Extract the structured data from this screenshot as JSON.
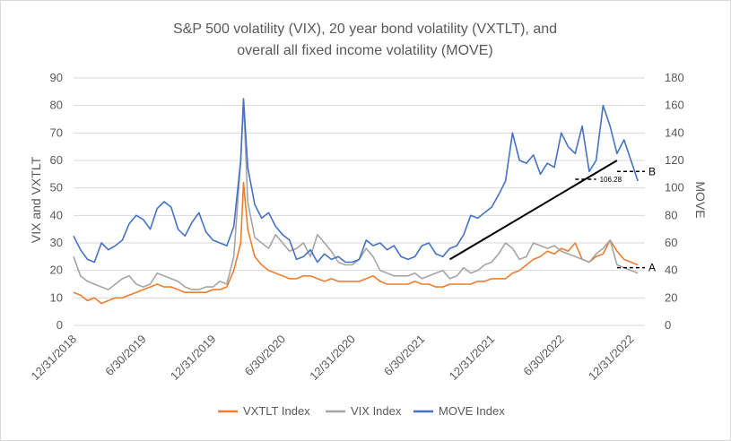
{
  "chart_data": {
    "type": "line",
    "title_line1": "S&P 500 volatility (VIX), 20 year bond volatility (VXTLT), and",
    "title_line2": "overall all fixed income volatility (MOVE)",
    "ylabel_left": "VIX and VXTLT",
    "ylabel_right": "MOVE",
    "ylim_left": [
      0,
      90
    ],
    "ylim_right": [
      0,
      180
    ],
    "yticks_left": [
      "0",
      "10",
      "20",
      "30",
      "40",
      "50",
      "60",
      "70",
      "80",
      "90"
    ],
    "yticks_right": [
      "0",
      "20",
      "40",
      "60",
      "80",
      "100",
      "120",
      "140",
      "160",
      "180"
    ],
    "x_tick_labels": [
      "12/31/2018",
      "6/30/2019",
      "12/31/2019",
      "6/30/2020",
      "12/31/2020",
      "6/30/2021",
      "12/31/2021",
      "6/30/2022",
      "12/31/2022"
    ],
    "x_tick_values": [
      2019.0,
      2019.5,
      2020.0,
      2020.5,
      2021.0,
      2021.5,
      2022.0,
      2022.5,
      2023.0
    ],
    "x_range": [
      2019.0,
      2023.1
    ],
    "grid": "horizontal",
    "legend_position": "bottom",
    "series": [
      {
        "name": "VXTLT Index",
        "axis": "left",
        "color": "#ED7D31",
        "x": [
          2019.0,
          2019.05,
          2019.1,
          2019.15,
          2019.2,
          2019.25,
          2019.3,
          2019.35,
          2019.4,
          2019.45,
          2019.5,
          2019.55,
          2019.6,
          2019.65,
          2019.7,
          2019.75,
          2019.8,
          2019.85,
          2019.9,
          2019.95,
          2020.0,
          2020.05,
          2020.1,
          2020.15,
          2020.2,
          2020.22,
          2020.25,
          2020.3,
          2020.35,
          2020.4,
          2020.45,
          2020.5,
          2020.55,
          2020.6,
          2020.65,
          2020.7,
          2020.75,
          2020.8,
          2020.85,
          2020.9,
          2020.95,
          2021.0,
          2021.05,
          2021.1,
          2021.15,
          2021.2,
          2021.25,
          2021.3,
          2021.35,
          2021.4,
          2021.45,
          2021.5,
          2021.55,
          2021.6,
          2021.65,
          2021.7,
          2021.75,
          2021.8,
          2021.85,
          2021.9,
          2021.95,
          2022.0,
          2022.05,
          2022.1,
          2022.15,
          2022.2,
          2022.25,
          2022.3,
          2022.35,
          2022.4,
          2022.45,
          2022.5,
          2022.55,
          2022.6,
          2022.65,
          2022.7,
          2022.75,
          2022.8,
          2022.85,
          2022.9,
          2022.95,
          2023.0,
          2023.05
        ],
        "values": [
          12,
          11,
          9,
          10,
          8,
          9,
          10,
          10,
          11,
          12,
          13,
          14,
          15,
          14,
          14,
          13,
          12,
          12,
          12,
          12,
          13,
          13,
          14,
          20,
          30,
          52,
          35,
          25,
          22,
          20,
          19,
          18,
          17,
          17,
          18,
          18,
          17,
          16,
          17,
          16,
          16,
          16,
          16,
          17,
          18,
          16,
          15,
          15,
          15,
          15,
          16,
          15,
          15,
          14,
          14,
          15,
          15,
          15,
          15,
          16,
          16,
          17,
          17,
          17,
          19,
          20,
          22,
          24,
          25,
          27,
          26,
          28,
          27,
          30,
          24,
          23,
          25,
          26,
          31,
          27,
          24,
          23,
          22
        ]
      },
      {
        "name": "VIX Index",
        "axis": "left",
        "color": "#A5A5A5",
        "x": [
          2019.0,
          2019.05,
          2019.1,
          2019.15,
          2019.2,
          2019.25,
          2019.3,
          2019.35,
          2019.4,
          2019.45,
          2019.5,
          2019.55,
          2019.6,
          2019.65,
          2019.7,
          2019.75,
          2019.8,
          2019.85,
          2019.9,
          2019.95,
          2020.0,
          2020.05,
          2020.1,
          2020.15,
          2020.2,
          2020.22,
          2020.25,
          2020.3,
          2020.35,
          2020.4,
          2020.45,
          2020.5,
          2020.55,
          2020.6,
          2020.65,
          2020.7,
          2020.75,
          2020.8,
          2020.85,
          2020.9,
          2020.95,
          2021.0,
          2021.05,
          2021.1,
          2021.15,
          2021.2,
          2021.25,
          2021.3,
          2021.35,
          2021.4,
          2021.45,
          2021.5,
          2021.55,
          2021.6,
          2021.65,
          2021.7,
          2021.75,
          2021.8,
          2021.85,
          2021.9,
          2021.95,
          2022.0,
          2022.05,
          2022.1,
          2022.15,
          2022.2,
          2022.25,
          2022.3,
          2022.35,
          2022.4,
          2022.45,
          2022.5,
          2022.55,
          2022.6,
          2022.65,
          2022.7,
          2022.75,
          2022.8,
          2022.85,
          2022.9,
          2022.95,
          2023.0,
          2023.05
        ],
        "values": [
          25,
          18,
          16,
          15,
          14,
          13,
          15,
          17,
          18,
          15,
          14,
          15,
          19,
          18,
          17,
          16,
          14,
          13,
          13,
          14,
          14,
          16,
          15,
          25,
          60,
          82,
          45,
          32,
          30,
          28,
          33,
          30,
          27,
          28,
          30,
          25,
          33,
          30,
          27,
          23,
          22,
          22,
          24,
          28,
          25,
          20,
          19,
          18,
          18,
          18,
          19,
          17,
          18,
          19,
          20,
          17,
          18,
          21,
          19,
          20,
          22,
          23,
          26,
          30,
          28,
          24,
          25,
          30,
          29,
          28,
          29,
          27,
          26,
          25,
          24,
          23,
          26,
          28,
          31,
          22,
          21,
          20,
          19
        ]
      },
      {
        "name": "MOVE Index",
        "axis": "right",
        "color": "#4472C4",
        "x": [
          2019.0,
          2019.05,
          2019.1,
          2019.15,
          2019.2,
          2019.25,
          2019.3,
          2019.35,
          2019.4,
          2019.45,
          2019.5,
          2019.55,
          2019.6,
          2019.65,
          2019.7,
          2019.75,
          2019.8,
          2019.85,
          2019.9,
          2019.95,
          2020.0,
          2020.05,
          2020.1,
          2020.15,
          2020.2,
          2020.22,
          2020.25,
          2020.3,
          2020.35,
          2020.4,
          2020.45,
          2020.5,
          2020.55,
          2020.6,
          2020.65,
          2020.7,
          2020.75,
          2020.8,
          2020.85,
          2020.9,
          2020.95,
          2021.0,
          2021.05,
          2021.1,
          2021.15,
          2021.2,
          2021.25,
          2021.3,
          2021.35,
          2021.4,
          2021.45,
          2021.5,
          2021.55,
          2021.6,
          2021.65,
          2021.7,
          2021.75,
          2021.8,
          2021.85,
          2021.9,
          2021.95,
          2022.0,
          2022.05,
          2022.1,
          2022.15,
          2022.2,
          2022.25,
          2022.3,
          2022.35,
          2022.4,
          2022.45,
          2022.5,
          2022.55,
          2022.6,
          2022.65,
          2022.7,
          2022.75,
          2022.8,
          2022.85,
          2022.9,
          2022.95,
          2023.0,
          2023.05
        ],
        "values": [
          65,
          55,
          48,
          46,
          60,
          55,
          58,
          62,
          74,
          80,
          77,
          70,
          85,
          90,
          86,
          70,
          65,
          75,
          82,
          68,
          62,
          60,
          58,
          72,
          120,
          165,
          115,
          88,
          78,
          82,
          72,
          66,
          62,
          48,
          50,
          55,
          46,
          52,
          48,
          50,
          46,
          46,
          48,
          62,
          58,
          60,
          55,
          58,
          50,
          48,
          50,
          58,
          60,
          52,
          50,
          56,
          58,
          66,
          80,
          78,
          82,
          86,
          95,
          105,
          140,
          120,
          118,
          124,
          110,
          118,
          115,
          140,
          130,
          125,
          145,
          112,
          120,
          160,
          145,
          125,
          135,
          120,
          105
        ]
      }
    ],
    "annotations": {
      "label_a": "A",
      "label_b": "B",
      "level_label": "106.28",
      "trend_start": {
        "x": 2021.7,
        "y_right": 48
      },
      "trend_end": {
        "x": 2022.9,
        "y_right": 120
      },
      "a_line": {
        "x0": 2022.9,
        "x1": 2023.1,
        "y_left": 21
      },
      "b_line": {
        "x0": 2022.9,
        "x1": 2023.1,
        "y_right": 112
      },
      "level_line": {
        "x0": 2022.6,
        "x1": 2022.75,
        "y_right": 106.28
      }
    }
  }
}
